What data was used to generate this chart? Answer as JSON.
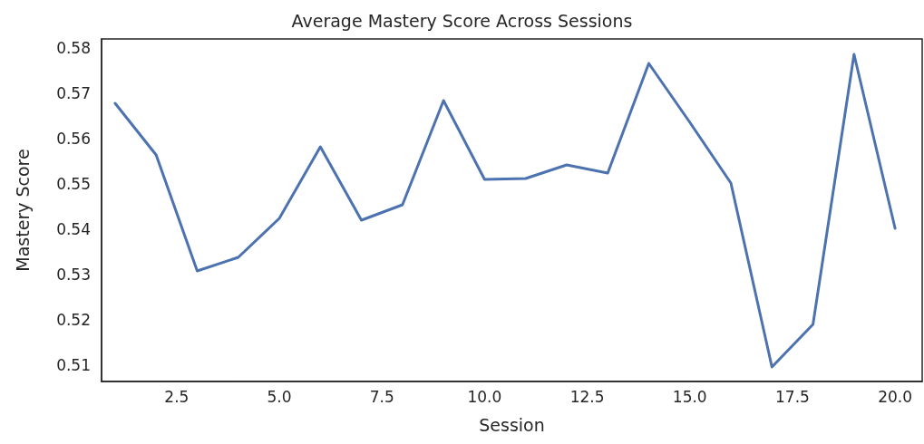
{
  "chart_data": {
    "type": "line",
    "title": "Average Mastery Score Across Sessions",
    "xlabel": "Session",
    "ylabel": "Mastery Score",
    "x": [
      1,
      2,
      3,
      4,
      5,
      6,
      7,
      8,
      9,
      10,
      11,
      12,
      13,
      14,
      15,
      16,
      17,
      18,
      19,
      20
    ],
    "series": [
      {
        "color": "#4c72b0",
        "values": [
          0.5678,
          0.5564,
          0.5308,
          0.5338,
          0.5424,
          0.5582,
          0.542,
          0.5454,
          0.5684,
          0.551,
          0.5512,
          0.5542,
          0.5524,
          0.5766,
          0.5636,
          0.5502,
          0.5096,
          0.519,
          0.5786,
          0.5402
        ]
      }
    ],
    "xlim": [
      0.67,
      20.66
    ],
    "ylim": [
      0.5064,
      0.582
    ],
    "xticks": [
      {
        "value": 2.5,
        "label": "2.5"
      },
      {
        "value": 5,
        "label": "5.0"
      },
      {
        "value": 7.5,
        "label": "7.5"
      },
      {
        "value": 10,
        "label": "10.0"
      },
      {
        "value": 12.5,
        "label": "12.5"
      },
      {
        "value": 15,
        "label": "15.0"
      },
      {
        "value": 17.5,
        "label": "17.5"
      },
      {
        "value": 20,
        "label": "20.0"
      }
    ],
    "yticks": [
      0.51,
      0.52,
      0.53,
      0.54,
      0.55,
      0.56,
      0.57,
      0.58
    ],
    "grid": false,
    "marker": "none",
    "line_style": "solid"
  }
}
